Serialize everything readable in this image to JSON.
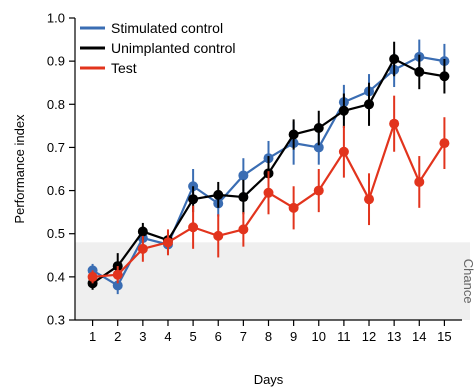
{
  "chart_data": {
    "type": "line",
    "xlabel": "Days",
    "ylabel": "Performance index",
    "x": [
      1,
      2,
      3,
      4,
      5,
      6,
      7,
      8,
      9,
      10,
      11,
      12,
      13,
      14,
      15
    ],
    "xlim": [
      0.3,
      15.7
    ],
    "ylim": [
      0.3,
      1.0
    ],
    "yticks": [
      "0.3",
      "0.4",
      "0.5",
      "0.6",
      "0.7",
      "0.8",
      "0.9",
      "1.0"
    ],
    "xticks": [
      "1",
      "2",
      "3",
      "4",
      "5",
      "6",
      "7",
      "8",
      "9",
      "10",
      "11",
      "12",
      "13",
      "14",
      "15"
    ],
    "grid": false,
    "legend_position": "top-left",
    "chance": {
      "label": "Chance",
      "y_max": 0.48,
      "color": "#efefef"
    },
    "series": [
      {
        "name": "Stimulated control",
        "color": "#3a6db3",
        "values": [
          0.415,
          0.38,
          0.49,
          0.475,
          0.61,
          0.57,
          0.635,
          0.675,
          0.71,
          0.7,
          0.805,
          0.83,
          0.88,
          0.91,
          0.9
        ],
        "err": [
          0.015,
          0.02,
          0.025,
          0.02,
          0.04,
          0.03,
          0.04,
          0.04,
          0.05,
          0.04,
          0.04,
          0.04,
          0.04,
          0.04,
          0.04
        ]
      },
      {
        "name": "Unimplanted control",
        "color": "#000000",
        "values": [
          0.385,
          0.425,
          0.505,
          0.485,
          0.58,
          0.59,
          0.585,
          0.64,
          0.73,
          0.745,
          0.785,
          0.8,
          0.905,
          0.875,
          0.865
        ],
        "err": [
          0.015,
          0.03,
          0.02,
          0.02,
          0.03,
          0.03,
          0.04,
          0.04,
          0.035,
          0.04,
          0.04,
          0.05,
          0.04,
          0.04,
          0.04
        ]
      },
      {
        "name": "Test",
        "color": "#e2341d",
        "values": [
          0.4,
          0.405,
          0.465,
          0.48,
          0.515,
          0.495,
          0.51,
          0.595,
          0.56,
          0.6,
          0.69,
          0.58,
          0.755,
          0.62,
          0.71
        ],
        "err": [
          0.015,
          0.02,
          0.03,
          0.03,
          0.05,
          0.05,
          0.04,
          0.05,
          0.05,
          0.05,
          0.06,
          0.06,
          0.065,
          0.06,
          0.06
        ]
      }
    ]
  }
}
